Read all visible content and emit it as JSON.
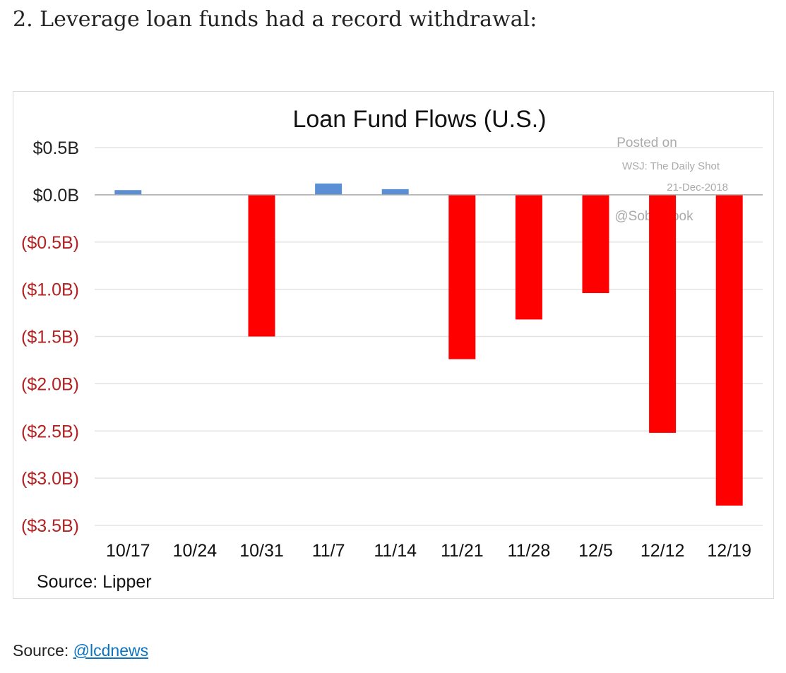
{
  "article": {
    "heading": "2. Leverage loan funds had a record withdrawal:",
    "source_label": "Source:",
    "source_link": "@lcdnews"
  },
  "chart_data": {
    "type": "bar",
    "title": "Loan Fund Flows (U.S.)",
    "categories": [
      "10/17",
      "10/24",
      "10/31",
      "11/7",
      "11/14",
      "11/21",
      "11/28",
      "12/5",
      "12/12",
      "12/19"
    ],
    "series": [
      {
        "values": [
          0.05,
          0.0,
          -1.5,
          0.12,
          0.06,
          -1.74,
          -1.32,
          -1.04,
          -2.52,
          -3.29
        ]
      }
    ],
    "unit": "USD billions",
    "ylim": [
      -3.5,
      0.5
    ],
    "yticks": [
      {
        "value": 0.5,
        "label": "$0.5B"
      },
      {
        "value": 0.0,
        "label": "$0.0B"
      },
      {
        "value": -0.5,
        "label": "($0.5B)"
      },
      {
        "value": -1.0,
        "label": "($1.0B)"
      },
      {
        "value": -1.5,
        "label": "($1.5B)"
      },
      {
        "value": -2.0,
        "label": "($2.0B)"
      },
      {
        "value": -2.5,
        "label": "($2.5B)"
      },
      {
        "value": -3.0,
        "label": "($3.0B)"
      },
      {
        "value": -3.5,
        "label": "($3.5B)"
      }
    ],
    "grid": true,
    "colors": {
      "positive": "#5b8fd3",
      "negative": "#ff0000",
      "negative_label": "#b22222",
      "positive_label": "#222222"
    },
    "watermark": [
      "Posted on",
      "WSJ: The Daily Shot",
      "21-Dec-2018",
      "@SoberLook"
    ],
    "source_note": "Source: Lipper"
  }
}
